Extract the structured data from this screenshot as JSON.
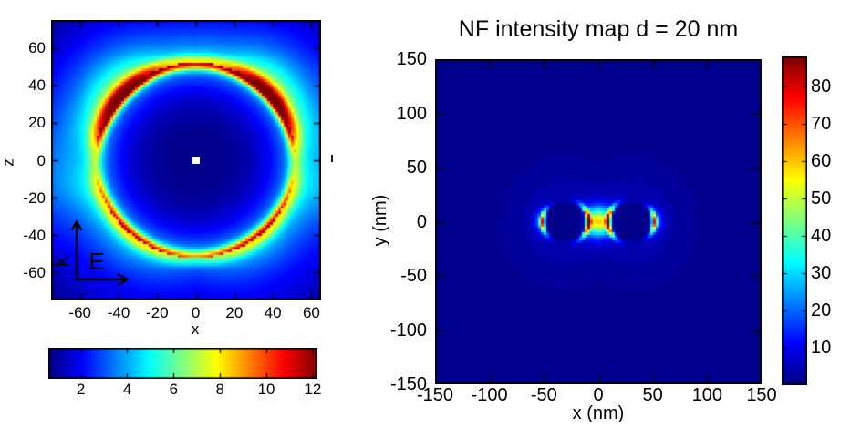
{
  "figure": {
    "background": "#ffffff"
  },
  "chart_data": [
    {
      "id": "left",
      "type": "heatmap",
      "title": "",
      "xlabel": "x",
      "ylabel": "z",
      "x_range": [
        -75,
        65
      ],
      "y_range": [
        -75,
        75
      ],
      "x_ticks": [
        -60,
        -40,
        -20,
        0,
        20,
        40,
        60
      ],
      "y_ticks": [
        60,
        40,
        20,
        0,
        -20,
        -40,
        -60
      ],
      "colormap": "jet",
      "colorbar": {
        "orientation": "horizontal",
        "range": [
          0.6,
          12.2
        ],
        "ticks": [
          2,
          4,
          6,
          8,
          10,
          12
        ]
      },
      "description": "Near-field intensity in the x-z plane around a single spherical nanoparticle of radius ~50; saturated red arcs (~12) on the upper diagonals of the rim, yellow arcs on the lower diagonals, cyan lobes at the sides, dark-blue interior with a white source marker at the origin; k vector points up (+z), E field points right (+x).",
      "annotations": [
        {
          "label": "k",
          "type": "arrow-up"
        },
        {
          "label": "E",
          "type": "arrow-right"
        }
      ],
      "marker": {
        "x": 0,
        "y": 0,
        "shape": "square",
        "color": "#ffffff"
      },
      "model": {
        "kind": "single_particle",
        "radius": 50,
        "band_offset": 2,
        "background": 1.15,
        "corner_dark": [
          82,
          24,
          0.45
        ],
        "interior_base": 0.75,
        "interior_gain": 3.4,
        "interior_power": 3.5,
        "rim_base": 3.8,
        "rim_top_bump": [
          1.8,
          12
        ],
        "rim_lobes": [
          [
            8.3,
            47,
            33
          ],
          [
            3.4,
            141,
            33
          ]
        ],
        "rim_side_dip": [
          2.8,
          90,
          14
        ],
        "rim_sigma_in": 3.5,
        "rim_sigma_out": 4.0,
        "halo_gain": 0.75,
        "halo_decay": 16,
        "halo_rise": 4,
        "side_glow": [
          3.0,
          95,
          22,
          55
        ]
      }
    },
    {
      "id": "right",
      "type": "heatmap",
      "title": "NF intensity map d = 20 nm",
      "xlabel": "x (nm)",
      "ylabel": "y (nm)",
      "x_range": [
        -150,
        150
      ],
      "y_range": [
        -150,
        150
      ],
      "x_ticks": [
        -150,
        -100,
        -50,
        0,
        50,
        100,
        150
      ],
      "y_ticks": [
        150,
        100,
        50,
        0,
        -50,
        -100,
        -150
      ],
      "colormap": "jet",
      "colorbar": {
        "orientation": "vertical",
        "range": [
          0,
          88
        ],
        "ticks": [
          10,
          20,
          30,
          40,
          50,
          60,
          70,
          80
        ]
      },
      "description": "Near-field intensity map of a nanoparticle dimer (two ~40 nm particles centered at x = -30 and +30 nm, gap d = 20 nm) in the x-y plane; hot spots up to ~88 on the facing inner edges forming an X-shaped pattern in the gap, red-orange crescents on the outer vertical edges, faint halos around the particles on a dark-blue background.",
      "model": {
        "kind": "dimer",
        "particles": [
          {
            "cx": -30,
            "cy": 0,
            "r": 20
          },
          {
            "cx": 30,
            "cy": 0,
            "r": 20
          }
        ],
        "background": 1.3,
        "interior": 1.0,
        "edge_offset": 1.2,
        "edge_sigma": 3.0,
        "edge_sigma_in": 2.2,
        "soft_gain": 0.3,
        "soft_sigma": 7,
        "ang_sigma_inner": 0.72,
        "ang_sigma_outer": 0.55,
        "amp_inner": 88,
        "amp_outer": 74,
        "hotspot": [
          45,
          8,
          14
        ],
        "halos": [
          {
            "cx": -30,
            "cy": 0,
            "r": 40,
            "amp": 2.4,
            "edge": 6
          },
          {
            "cx": 30,
            "cy": 0,
            "r": 40,
            "amp": 2.4,
            "edge": 6
          },
          {
            "cx": 0,
            "cy": 0,
            "r": 36,
            "amp": 2.4,
            "edge": 6
          },
          {
            "cx": -30,
            "cy": 0,
            "r": 62,
            "amp": 1.1,
            "edge": 9
          },
          {
            "cx": 30,
            "cy": 0,
            "r": 62,
            "amp": 1.1,
            "edge": 9
          }
        ]
      }
    }
  ]
}
